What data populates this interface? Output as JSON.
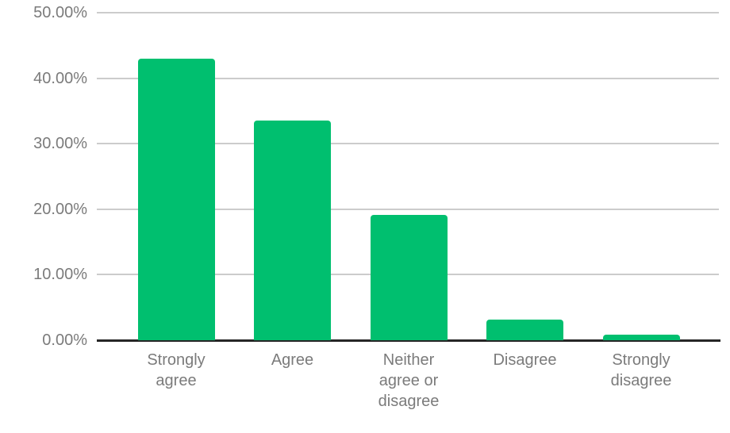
{
  "chart_data": {
    "type": "bar",
    "title": "",
    "xlabel": "",
    "ylabel": "",
    "categories": [
      "Strongly agree",
      "Agree",
      "Neither agree or disagree",
      "Disagree",
      "Strongly disagree"
    ],
    "categories_wrapped": [
      "Strongly\nagree",
      "Agree",
      "Neither\nagree or\ndisagree",
      "Disagree",
      "Strongly\ndisagree"
    ],
    "values": [
      43.0,
      33.5,
      19.1,
      3.1,
      0.8
    ],
    "value_unit": "%",
    "ylim": [
      0,
      50
    ],
    "y_ticks": [
      50,
      40,
      30,
      20,
      10,
      0
    ],
    "y_tick_labels": [
      "50.00%",
      "40.00%",
      "30.00%",
      "20.00%",
      "10.00%",
      "0.00%"
    ],
    "grid": "horizontal",
    "legend": "none",
    "colors": {
      "bar": "#00BF6F",
      "gridline": "#cccccc",
      "axis_line": "#262626",
      "tick_text": "#7b7b7b",
      "background": "#ffffff"
    }
  }
}
